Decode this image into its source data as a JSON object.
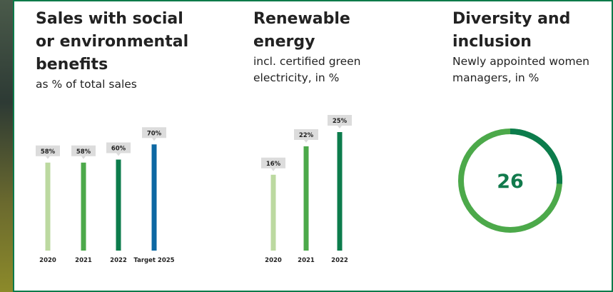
{
  "chart_data": [
    {
      "type": "bar",
      "title": "Sales with social or environmental benefits",
      "subtitle": "as % of total sales",
      "categories": [
        "2020",
        "2021",
        "2022",
        "Target 2025"
      ],
      "values": [
        58,
        58,
        60,
        70
      ],
      "value_labels": [
        "58%",
        "58%",
        "60%",
        "70%"
      ],
      "colors": [
        "#bcd9a0",
        "#4ca94a",
        "#0c7c4c",
        "#0d68a3"
      ],
      "ylim": [
        0,
        100
      ]
    },
    {
      "type": "bar",
      "title": "Renewable energy",
      "subtitle": "incl. certified green electricity, in %",
      "categories": [
        "2020",
        "2021",
        "2022"
      ],
      "values": [
        16,
        22,
        25
      ],
      "value_labels": [
        "16%",
        "22%",
        "25%"
      ],
      "colors": [
        "#bcd9a0",
        "#4ca94a",
        "#0c7c4c"
      ],
      "ylim": [
        0,
        35
      ]
    },
    {
      "type": "pie",
      "title": "Diversity and inclusion",
      "subtitle": "Newly appointed women managers, in %",
      "value": 26,
      "value_label": "26",
      "colors": {
        "value": "#0c7c4c",
        "rest": "#4ca94a"
      }
    }
  ]
}
